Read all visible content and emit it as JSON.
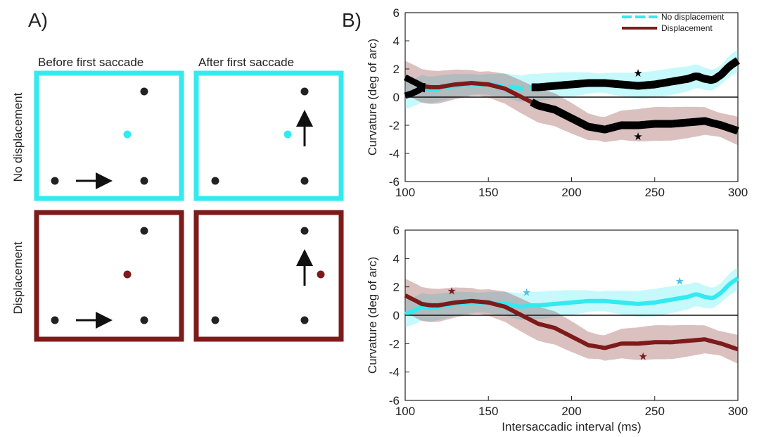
{
  "panel_a": {
    "label": "A)",
    "col_titles": [
      "Before first saccade",
      "After first saccade"
    ],
    "row_titles": [
      "No displacement",
      "Displacement"
    ],
    "colors": {
      "no_displacement": "#33eaf0",
      "displacement": "#7d1b1b",
      "dot": "#222222"
    }
  },
  "panel_b": {
    "label": "B)"
  },
  "chart_data": [
    {
      "type": "line",
      "xlabel": "",
      "ylabel": "Curvature (deg of arc)",
      "xlim": [
        100,
        300
      ],
      "ylim": [
        -6,
        6
      ],
      "xticks": [
        100,
        150,
        200,
        250,
        300
      ],
      "yticks": [
        6,
        4,
        2,
        0,
        -2,
        -4,
        -6
      ],
      "legend": {
        "placement": "top-right",
        "entries": [
          "No displacement",
          "Displacement"
        ]
      },
      "series": [
        {
          "name": "No displacement",
          "color": "#33eaf0",
          "x": [
            100,
            105,
            110,
            115,
            120,
            130,
            140,
            150,
            160,
            170,
            175,
            180,
            190,
            200,
            210,
            220,
            230,
            240,
            250,
            260,
            265,
            270,
            275,
            280,
            285,
            290,
            295,
            300
          ],
          "y": [
            0.1,
            0.3,
            0.6,
            0.5,
            0.6,
            0.8,
            0.9,
            0.9,
            0.8,
            0.6,
            0.7,
            0.7,
            0.8,
            0.9,
            1.0,
            1.0,
            0.9,
            0.8,
            0.9,
            1.1,
            1.2,
            1.3,
            1.5,
            1.3,
            1.2,
            1.6,
            2.2,
            2.6
          ],
          "ci_half_width": 0.8
        },
        {
          "name": "Displacement",
          "color": "#7d1b1b",
          "x": [
            100,
            105,
            110,
            115,
            120,
            130,
            140,
            150,
            160,
            170,
            175,
            180,
            190,
            200,
            210,
            220,
            230,
            240,
            250,
            260,
            270,
            280,
            290,
            300
          ],
          "y": [
            1.4,
            1.1,
            0.8,
            0.7,
            0.7,
            0.9,
            1.0,
            0.9,
            0.6,
            0.0,
            -0.3,
            -0.6,
            -0.9,
            -1.5,
            -2.1,
            -2.3,
            -2.0,
            -2.0,
            -1.9,
            -1.9,
            -1.8,
            -1.7,
            -2.0,
            -2.4
          ],
          "ci_half_width": 1.0
        }
      ],
      "annotations": [
        {
          "text": "★",
          "x": 240,
          "y": 1.7,
          "color": "#000000"
        },
        {
          "text": "★",
          "x": 240,
          "y": -2.8,
          "color": "#000000"
        }
      ]
    },
    {
      "type": "line",
      "xlabel": "Intersaccadic interval (ms)",
      "ylabel": "Curvature (deg of arc)",
      "xlim": [
        100,
        300
      ],
      "ylim": [
        -6,
        6
      ],
      "xticks": [
        100,
        150,
        200,
        250,
        300
      ],
      "yticks": [
        6,
        4,
        2,
        0,
        -2,
        -4,
        -6
      ],
      "series": [
        {
          "name": "No displacement",
          "color": "#33eaf0",
          "x": [
            100,
            105,
            110,
            115,
            120,
            130,
            140,
            150,
            160,
            170,
            175,
            180,
            190,
            200,
            210,
            220,
            230,
            240,
            250,
            260,
            265,
            270,
            275,
            280,
            285,
            290,
            295,
            300
          ],
          "y": [
            0.1,
            0.3,
            0.6,
            0.5,
            0.6,
            0.8,
            0.9,
            0.9,
            0.8,
            0.6,
            0.7,
            0.7,
            0.8,
            0.9,
            1.0,
            1.0,
            0.9,
            0.8,
            0.9,
            1.1,
            1.2,
            1.3,
            1.5,
            1.3,
            1.2,
            1.6,
            2.2,
            2.6
          ],
          "ci_half_width": 0.8
        },
        {
          "name": "Displacement",
          "color": "#7d1b1b",
          "x": [
            100,
            105,
            110,
            115,
            120,
            130,
            140,
            150,
            160,
            170,
            175,
            180,
            190,
            200,
            210,
            220,
            230,
            240,
            250,
            260,
            270,
            280,
            290,
            300
          ],
          "y": [
            1.4,
            1.1,
            0.8,
            0.7,
            0.7,
            0.9,
            1.0,
            0.9,
            0.6,
            0.0,
            -0.3,
            -0.6,
            -0.9,
            -1.5,
            -2.1,
            -2.3,
            -2.0,
            -2.0,
            -1.9,
            -1.9,
            -1.8,
            -1.7,
            -2.0,
            -2.4
          ],
          "ci_half_width": 1.0
        }
      ],
      "annotations": [
        {
          "text": "★",
          "x": 128,
          "y": 1.7,
          "color": "#7d1b1b"
        },
        {
          "text": "★",
          "x": 173,
          "y": 1.6,
          "color": "#4fc3e0"
        },
        {
          "text": "★",
          "x": 265,
          "y": 2.4,
          "color": "#4fc3e0"
        },
        {
          "text": "★",
          "x": 243,
          "y": -2.9,
          "color": "#7d1b1b"
        }
      ]
    }
  ]
}
